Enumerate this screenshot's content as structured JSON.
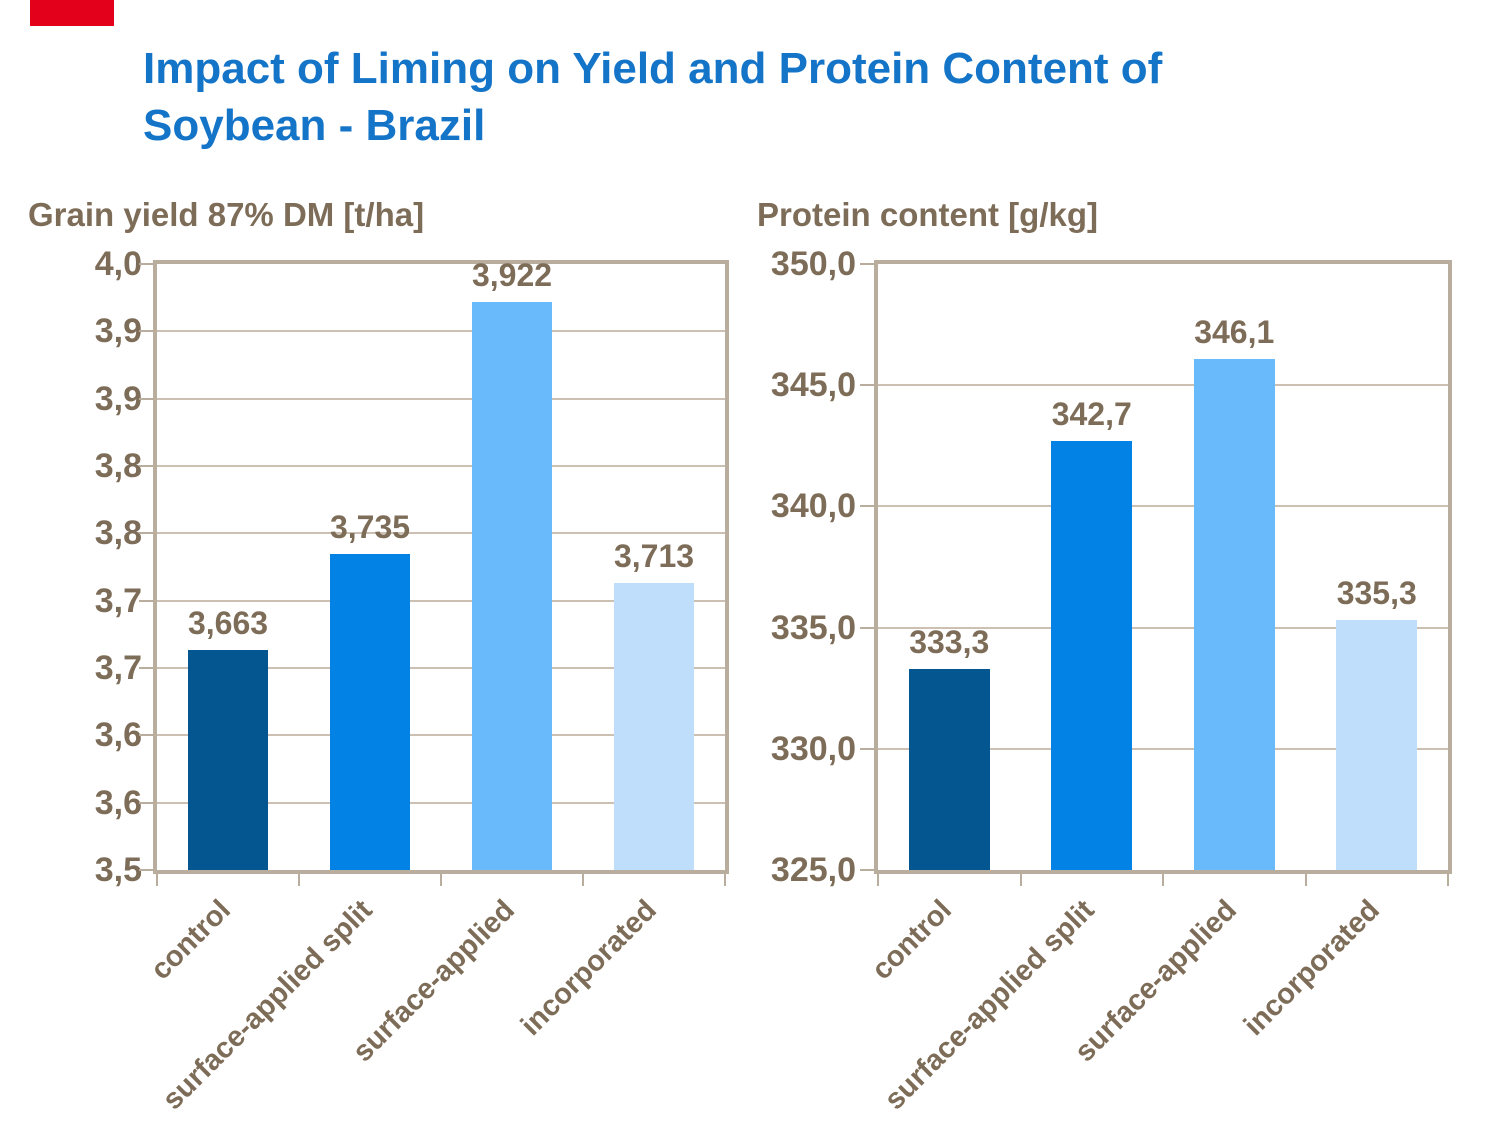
{
  "accent_bar": {
    "color": "#E2001A"
  },
  "header": {
    "title": "Impact of Liming on Yield and Protein Content of\nSoybean - Brazil",
    "color": "#1474C8"
  },
  "styles": {
    "text_color": "#7D6D58",
    "grid_color": "#CBC0B1",
    "border_color": "#B9AD9E"
  },
  "chart_data": [
    {
      "type": "bar",
      "title": "Grain yield 87% DM [t/ha]",
      "categories": [
        "control",
        "surface-applied split",
        "surface-applied",
        "incorporated"
      ],
      "values": [
        3.663,
        3.735,
        3.922,
        3.713
      ],
      "value_labels": [
        "3,663",
        "3,735",
        "3,922",
        "3,713"
      ],
      "bar_colors": [
        "#03568F",
        "#0282E4",
        "#69BAFB",
        "#BEDEFB"
      ],
      "ylim": [
        3.5,
        3.95
      ],
      "y_tick_labels": [
        "4,0",
        "3,9",
        "3,9",
        "3,8",
        "3,8",
        "3,7",
        "3,7",
        "3,6",
        "3,6",
        "3,5"
      ],
      "grid": true,
      "legend": null
    },
    {
      "type": "bar",
      "title": "Protein content [g/kg]",
      "categories": [
        "control",
        "surface-applied split",
        "surface-applied",
        "incorporated"
      ],
      "values": [
        333.3,
        342.7,
        346.1,
        335.3
      ],
      "value_labels": [
        "333,3",
        "342,7",
        "346,1",
        "335,3"
      ],
      "bar_colors": [
        "#03568F",
        "#0282E4",
        "#69BAFB",
        "#BEDEFB"
      ],
      "ylim": [
        325.0,
        350.0
      ],
      "y_tick_labels": [
        "350,0",
        "345,0",
        "340,0",
        "335,0",
        "330,0",
        "325,0"
      ],
      "grid": true,
      "legend": null
    }
  ]
}
